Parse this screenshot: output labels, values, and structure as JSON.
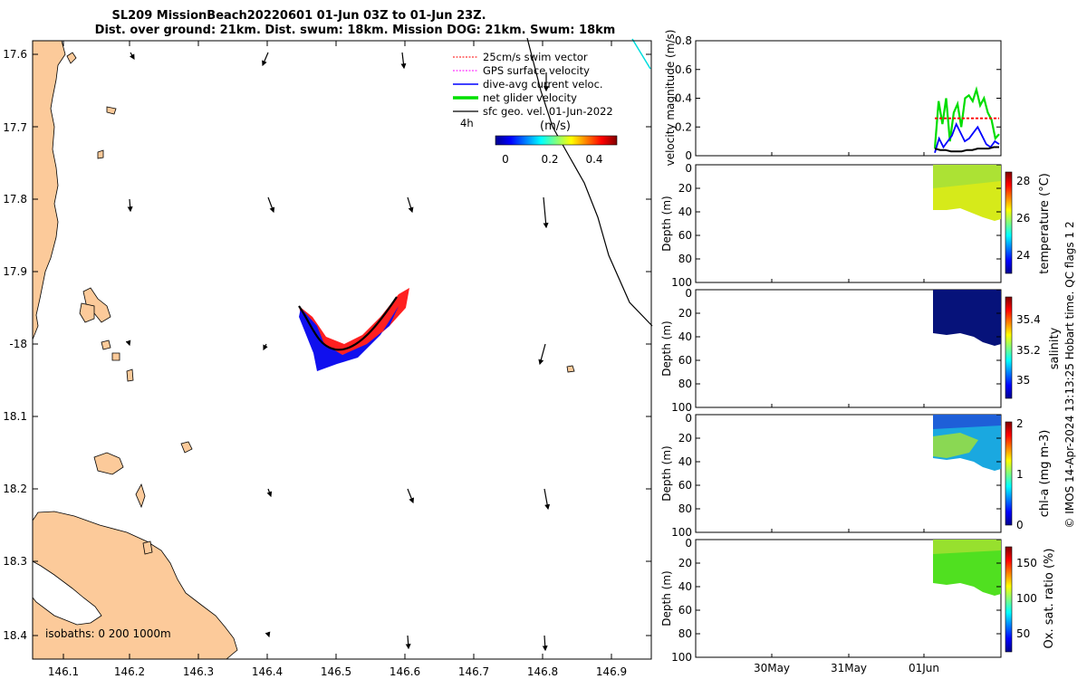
{
  "figure": {
    "title_line1": "SL209 MissionBeach20220601 01-Jun 03Z to 01-Jun 23Z.",
    "title_line2": "Dist. over ground: 21km. Dist. swum: 18km. Mission DOG: 21km. Swum: 18km",
    "copyright": "© IMOS 14-Apr-2024 13:13:25 Hobart time. QC flags 1 2"
  },
  "map": {
    "lon_ticks": [
      "146.1",
      "146.2",
      "146.3",
      "146.4",
      "146.5",
      "146.6",
      "146.7",
      "146.8",
      "146.9"
    ],
    "lat_ticks": [
      "17.6",
      "17.7",
      "17.8",
      "17.9",
      "-18",
      "18.1",
      "18.2",
      "18.3",
      "18.4"
    ],
    "isobaths_label": "isobaths: 0   200  1000m",
    "interval_label": "4h",
    "legend": [
      {
        "label": "25cm/s swim vector",
        "color": "#ff0000",
        "style": "dotted"
      },
      {
        "label": "GPS surface velocity",
        "color": "#ff00ff",
        "style": "dotted"
      },
      {
        "label": "dive-avg current veloc.",
        "color": "#0000ff",
        "style": "solid"
      },
      {
        "label": "net glider velocity",
        "color": "#00e000",
        "style": "thick"
      },
      {
        "label": "sfc geo. vel. 01-Jun-2022",
        "color": "#000000",
        "style": "solid"
      }
    ],
    "speed_colorbar": {
      "label": "(m/s)",
      "ticks": [
        "0",
        "0.2",
        "0.4"
      ]
    },
    "land_color": "#fcca9a"
  },
  "chart_data": [
    {
      "type": "line",
      "ylabel": "velocity magnitude (m/s)",
      "ylim": [
        0,
        0.8
      ],
      "yticks": [
        "0",
        "0.2",
        "0.4",
        "0.6",
        "0.8"
      ],
      "xticks": [
        "30May",
        "31May",
        "01Jun"
      ],
      "series": [
        {
          "color": "#00dd00",
          "values": [
            0.05,
            0.38,
            0.22,
            0.4,
            0.1,
            0.3,
            0.36,
            0.2,
            0.4,
            0.42,
            0.38,
            0.46,
            0.35,
            0.4,
            0.3,
            0.25,
            0.12,
            0.15
          ]
        },
        {
          "color": "#0000ff",
          "values": [
            0.02,
            0.12,
            0.06,
            0.1,
            0.14,
            0.22,
            0.16,
            0.1,
            0.12,
            0.16,
            0.2,
            0.14,
            0.08,
            0.06,
            0.1,
            0.08
          ]
        },
        {
          "color": "#000000",
          "values": [
            0.05,
            0.04,
            0.04,
            0.03,
            0.03,
            0.03,
            0.04,
            0.04,
            0.05,
            0.05,
            0.05,
            0.06,
            0.06
          ]
        },
        {
          "color": "#ff0000",
          "values": [
            0.26,
            0.26,
            0.26,
            0.26,
            0.26,
            0.26,
            0.26,
            0.26
          ]
        }
      ]
    },
    {
      "type": "heatmap",
      "variable": "temperature",
      "ylabel": "Depth (m)",
      "cblabel": "temperature (°C)",
      "cbticks": [
        "28",
        "26",
        "24"
      ],
      "yticks": [
        "0",
        "20",
        "40",
        "60",
        "80",
        "100"
      ]
    },
    {
      "type": "heatmap",
      "variable": "salinity",
      "ylabel": "Depth (m)",
      "cblabel": "salinity",
      "cbticks": [
        "35.4",
        "35.2",
        "35"
      ],
      "yticks": [
        "0",
        "20",
        "40",
        "60",
        "80",
        "100"
      ]
    },
    {
      "type": "heatmap",
      "variable": "chl-a",
      "ylabel": "Depth (m)",
      "cblabel": "chl-a (mg m-3)",
      "cbticks": [
        "2",
        "1",
        "0"
      ],
      "yticks": [
        "0",
        "20",
        "40",
        "60",
        "80",
        "100"
      ]
    },
    {
      "type": "heatmap",
      "variable": "oxygen",
      "ylabel": "Depth (m)",
      "cblabel": "Ox. sat. ratio (%)",
      "cbticks": [
        "150",
        "100",
        "50"
      ],
      "yticks": [
        "0",
        "20",
        "40",
        "60",
        "80",
        "100"
      ]
    }
  ]
}
